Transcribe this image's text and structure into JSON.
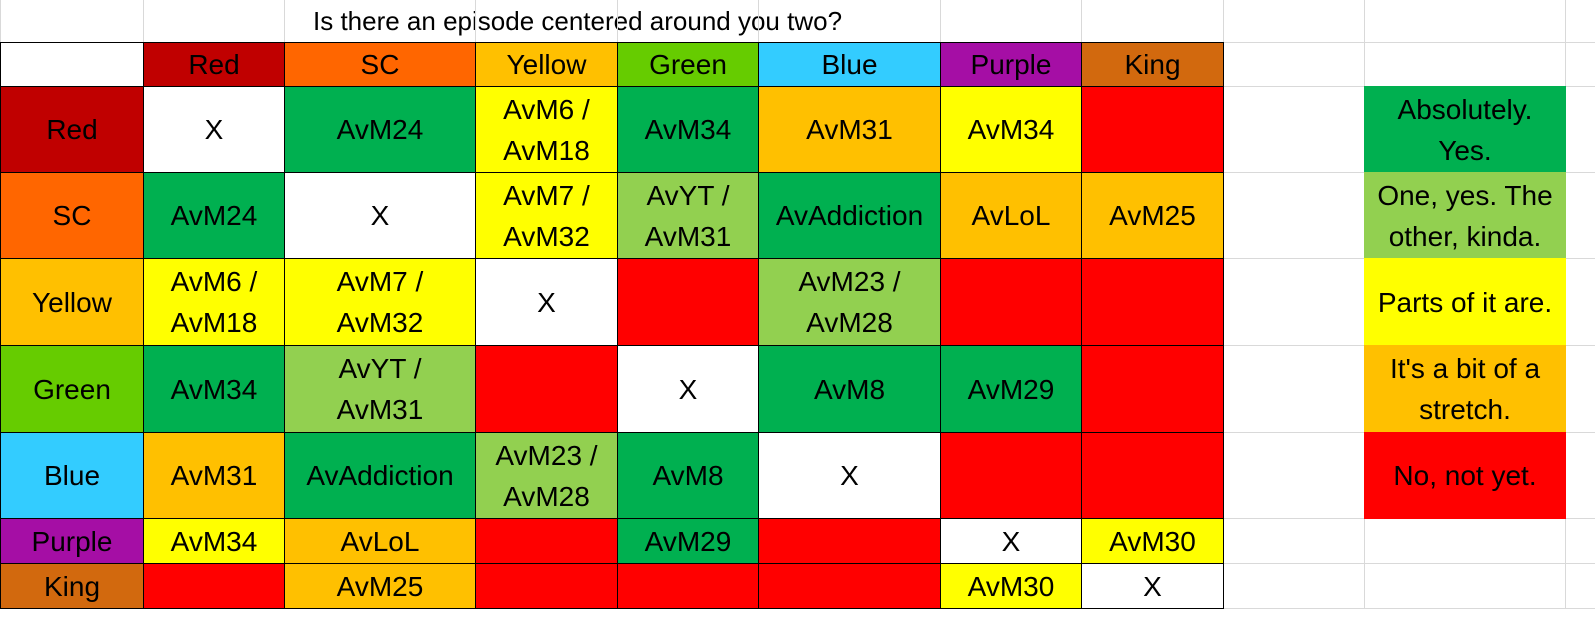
{
  "title": "Is there an episode centered around you two?",
  "colors": {
    "red_header": "#c00000",
    "sc_header": "#ff6600",
    "yellow_header": "#ffc000",
    "green_header": "#66cc00",
    "blue_header": "#33ccff",
    "purple_header": "#a50ea5",
    "king_header": "#d2690e",
    "absolutely": "#00b050",
    "one_kinda": "#92d050",
    "parts": "#ffff00",
    "stretch": "#ffc000",
    "not_yet": "#ff0000",
    "self": "#ffffff"
  },
  "headers": [
    {
      "label": "Red",
      "color": "#c00000"
    },
    {
      "label": "SC",
      "color": "#ff6600"
    },
    {
      "label": "Yellow",
      "color": "#ffc000"
    },
    {
      "label": "Green",
      "color": "#66cc00"
    },
    {
      "label": "Blue",
      "color": "#33ccff"
    },
    {
      "label": "Purple",
      "color": "#a50ea5"
    },
    {
      "label": "King",
      "color": "#d2690e"
    }
  ],
  "rows": [
    {
      "label": "Red",
      "cells": [
        {
          "text": "X",
          "level": "self"
        },
        {
          "text": "AvM24",
          "level": "absolutely"
        },
        {
          "text": "AvM6 /\nAvM18",
          "level": "parts"
        },
        {
          "text": "AvM34",
          "level": "absolutely"
        },
        {
          "text": "AvM31",
          "level": "stretch"
        },
        {
          "text": "AvM34",
          "level": "parts"
        },
        {
          "text": "",
          "level": "not_yet"
        }
      ]
    },
    {
      "label": "SC",
      "cells": [
        {
          "text": "AvM24",
          "level": "absolutely"
        },
        {
          "text": "X",
          "level": "self"
        },
        {
          "text": "AvM7 /\nAvM32",
          "level": "parts"
        },
        {
          "text": "AvYT /\nAvM31",
          "level": "one_kinda"
        },
        {
          "text": "AvAddiction",
          "level": "absolutely"
        },
        {
          "text": "AvLoL",
          "level": "stretch"
        },
        {
          "text": "AvM25",
          "level": "stretch"
        }
      ]
    },
    {
      "label": "Yellow",
      "cells": [
        {
          "text": "AvM6 /\nAvM18",
          "level": "parts"
        },
        {
          "text": "AvM7 /\nAvM32",
          "level": "parts"
        },
        {
          "text": "X",
          "level": "self"
        },
        {
          "text": "",
          "level": "not_yet"
        },
        {
          "text": "AvM23 /\nAvM28",
          "level": "one_kinda"
        },
        {
          "text": "",
          "level": "not_yet"
        },
        {
          "text": "",
          "level": "not_yet"
        }
      ]
    },
    {
      "label": "Green",
      "cells": [
        {
          "text": "AvM34",
          "level": "absolutely"
        },
        {
          "text": "AvYT /\nAvM31",
          "level": "one_kinda"
        },
        {
          "text": "",
          "level": "not_yet"
        },
        {
          "text": "X",
          "level": "self"
        },
        {
          "text": "AvM8",
          "level": "absolutely"
        },
        {
          "text": "AvM29",
          "level": "absolutely"
        },
        {
          "text": "",
          "level": "not_yet"
        }
      ]
    },
    {
      "label": "Blue",
      "cells": [
        {
          "text": "AvM31",
          "level": "stretch"
        },
        {
          "text": "AvAddiction",
          "level": "absolutely"
        },
        {
          "text": "AvM23 /\nAvM28",
          "level": "one_kinda"
        },
        {
          "text": "AvM8",
          "level": "absolutely"
        },
        {
          "text": "X",
          "level": "self"
        },
        {
          "text": "",
          "level": "not_yet"
        },
        {
          "text": "",
          "level": "not_yet"
        }
      ]
    },
    {
      "label": "Purple",
      "cells": [
        {
          "text": "AvM34",
          "level": "parts"
        },
        {
          "text": "AvLoL",
          "level": "stretch"
        },
        {
          "text": "",
          "level": "not_yet"
        },
        {
          "text": "AvM29",
          "level": "absolutely"
        },
        {
          "text": "",
          "level": "not_yet"
        },
        {
          "text": "X",
          "level": "self"
        },
        {
          "text": "AvM30",
          "level": "parts"
        }
      ]
    },
    {
      "label": "King",
      "cells": [
        {
          "text": "",
          "level": "not_yet"
        },
        {
          "text": "AvM25",
          "level": "stretch"
        },
        {
          "text": "",
          "level": "not_yet"
        },
        {
          "text": "",
          "level": "not_yet"
        },
        {
          "text": "",
          "level": "not_yet"
        },
        {
          "text": "AvM30",
          "level": "parts"
        },
        {
          "text": "X",
          "level": "self"
        }
      ]
    }
  ],
  "legend": [
    {
      "text": "Absolutely.\nYes.",
      "level": "absolutely"
    },
    {
      "text": "One, yes. The\nother, kinda.",
      "level": "one_kinda"
    },
    {
      "text": "Parts of it are.",
      "level": "parts"
    },
    {
      "text": "It's a bit of a\nstretch.",
      "level": "stretch"
    },
    {
      "text": "No, not yet.",
      "level": "not_yet"
    }
  ]
}
